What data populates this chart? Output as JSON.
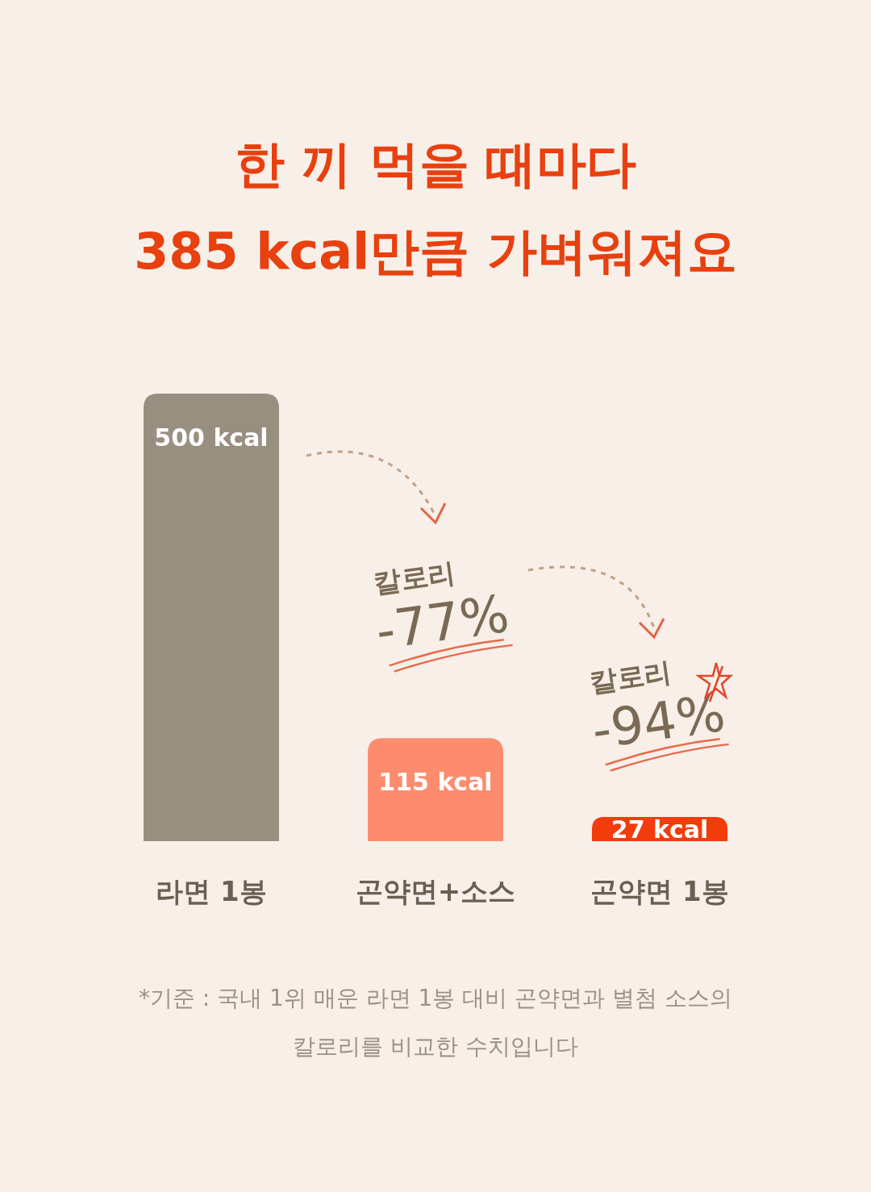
{
  "chart_data": {
    "type": "bar",
    "title": "한 끼 먹을 때마다\n385 kcal만큼 가벼워져요",
    "categories": [
      "라면 1봉",
      "곤약면+소스",
      "곤약면 1봉"
    ],
    "values": [
      500,
      115,
      27
    ],
    "colors": [
      "#998f81",
      "#fd8c6f",
      "#f23c0b"
    ],
    "value_labels": [
      "500 kcal",
      "115 kcal",
      "27 kcal"
    ],
    "annotations": [
      "칼로리\n-77%",
      "칼로리\n-94%",
      "*기준 : 국내 1위 매운 라면 1봉 대비 곤약면과 별첨 소스의\n칼로리를 비교한 수치입니다"
    ]
  }
}
